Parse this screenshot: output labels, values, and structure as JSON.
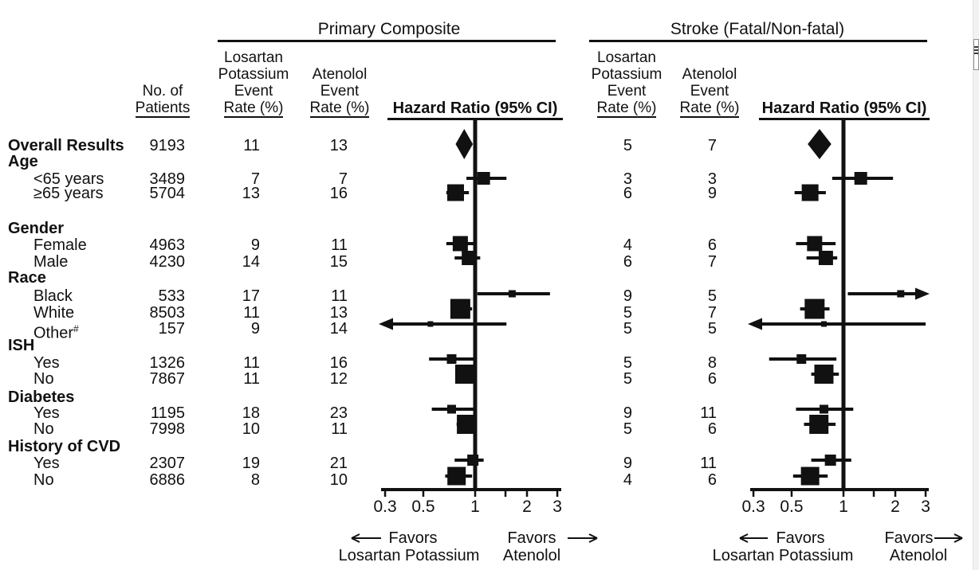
{
  "chart_data": {
    "type": "forest",
    "x_scale": "log",
    "x_ticks_labeled": [
      "0.3",
      "0.5",
      "1",
      "2",
      "3"
    ],
    "x_tick_values": [
      0.3,
      0.5,
      1,
      1.5,
      2,
      3
    ],
    "x_range": [
      0.29,
      3.15
    ],
    "columns": {
      "patients": [
        "No. of",
        "Patients"
      ],
      "losartan": [
        "Losartan",
        "Potassium",
        "Event",
        "Rate (%)"
      ],
      "atenolol": [
        "Atenolol",
        "Event",
        "Rate (%)"
      ],
      "hazard": "Hazard Ratio (95% CI)"
    },
    "panels": [
      {
        "key": "primary",
        "title": "Primary Composite",
        "favors_left": [
          "Favors",
          "Losartan Potassium"
        ],
        "favors_right": [
          "Favors",
          "Atenolol"
        ]
      },
      {
        "key": "stroke",
        "title": "Stroke (Fatal/Non-fatal)",
        "favors_left": [
          "Favors",
          "Losartan Potassium"
        ],
        "favors_right": [
          "Favors",
          "Atenolol"
        ]
      }
    ],
    "rows": [
      {
        "label": "Overall Results",
        "style": "overall",
        "n": 9193,
        "marker": "diamond",
        "size": 24,
        "primary": {
          "rate_losartan": 11,
          "rate_atenolol": 13,
          "hr": 0.86,
          "ci": [
            0.77,
            0.97
          ]
        },
        "stroke": {
          "rate_losartan": 5,
          "rate_atenolol": 7,
          "hr": 0.73,
          "ci": [
            0.62,
            0.85
          ]
        }
      },
      {
        "label": "Age",
        "style": "group"
      },
      {
        "label": "<65 years",
        "style": "item",
        "n": 3489,
        "marker": "square",
        "size": 16,
        "primary": {
          "rate_losartan": 7,
          "rate_atenolol": 7,
          "hr": 1.12,
          "ci": [
            0.89,
            1.52
          ]
        },
        "stroke": {
          "rate_losartan": 3,
          "rate_atenolol": 3,
          "hr": 1.26,
          "ci": [
            0.86,
            1.94
          ]
        }
      },
      {
        "label": "≥65 years",
        "style": "item",
        "n": 5704,
        "marker": "square",
        "size": 21,
        "primary": {
          "rate_losartan": 13,
          "rate_atenolol": 16,
          "hr": 0.77,
          "ci": [
            0.68,
            0.92
          ]
        },
        "stroke": {
          "rate_losartan": 6,
          "rate_atenolol": 9,
          "hr": 0.64,
          "ci": [
            0.52,
            0.79
          ]
        }
      },
      {
        "label": "Gender",
        "style": "group"
      },
      {
        "label": "Female",
        "style": "item",
        "n": 4963,
        "marker": "square",
        "size": 19,
        "primary": {
          "rate_losartan": 9,
          "rate_atenolol": 11,
          "hr": 0.82,
          "ci": [
            0.68,
            1.02
          ]
        },
        "stroke": {
          "rate_losartan": 4,
          "rate_atenolol": 6,
          "hr": 0.68,
          "ci": [
            0.53,
            0.9
          ]
        }
      },
      {
        "label": "Male",
        "style": "item",
        "n": 4230,
        "marker": "square",
        "size": 18,
        "primary": {
          "rate_losartan": 14,
          "rate_atenolol": 15,
          "hr": 0.92,
          "ci": [
            0.76,
            1.07
          ]
        },
        "stroke": {
          "rate_losartan": 6,
          "rate_atenolol": 7,
          "hr": 0.79,
          "ci": [
            0.61,
            0.92
          ]
        }
      },
      {
        "label": "Race",
        "style": "group"
      },
      {
        "label": "Black",
        "style": "item",
        "n": 533,
        "marker": "square",
        "size": 9,
        "primary": {
          "rate_losartan": 17,
          "rate_atenolol": 11,
          "hr": 1.64,
          "ci": [
            1.03,
            2.72
          ]
        },
        "stroke": {
          "rate_losartan": 9,
          "rate_atenolol": 5,
          "hr": 2.15,
          "ci": [
            1.06,
            3.1
          ],
          "hi_arrow": true
        }
      },
      {
        "label": "White",
        "style": "item",
        "n": 8503,
        "marker": "square",
        "size": 25,
        "primary": {
          "rate_losartan": 11,
          "rate_atenolol": 13,
          "hr": 0.82,
          "ci": [
            0.75,
            0.96
          ]
        },
        "stroke": {
          "rate_losartan": 5,
          "rate_atenolol": 7,
          "hr": 0.68,
          "ci": [
            0.56,
            0.83
          ]
        }
      },
      {
        "label": "Other",
        "sup": "#",
        "style": "item",
        "n": 157,
        "marker": "square",
        "size": 7,
        "primary": {
          "rate_losartan": 9,
          "rate_atenolol": 14,
          "hr": 0.55,
          "ci": [
            0.28,
            1.52
          ],
          "lo_arrow": true
        },
        "stroke": {
          "rate_losartan": 5,
          "rate_atenolol": 5,
          "hr": 0.77,
          "ci": [
            0.28,
            3.0
          ],
          "lo_arrow": true
        }
      },
      {
        "label": "ISH",
        "style": "group"
      },
      {
        "label": "Yes",
        "style": "item",
        "n": 1326,
        "marker": "square",
        "size": 12,
        "primary": {
          "rate_losartan": 11,
          "rate_atenolol": 16,
          "hr": 0.73,
          "ci": [
            0.54,
            1.02
          ]
        },
        "stroke": {
          "rate_losartan": 5,
          "rate_atenolol": 8,
          "hr": 0.57,
          "ci": [
            0.37,
            0.91
          ]
        }
      },
      {
        "label": "No",
        "style": "item",
        "n": 7867,
        "marker": "square",
        "size": 24,
        "primary": {
          "rate_losartan": 11,
          "rate_atenolol": 12,
          "hr": 0.87,
          "ci": [
            0.78,
            1.02
          ]
        },
        "stroke": {
          "rate_losartan": 5,
          "rate_atenolol": 6,
          "hr": 0.77,
          "ci": [
            0.65,
            0.94
          ]
        }
      },
      {
        "label": "Diabetes",
        "style": "group"
      },
      {
        "label": "Yes",
        "style": "item",
        "n": 1195,
        "marker": "square",
        "size": 11,
        "primary": {
          "rate_losartan": 18,
          "rate_atenolol": 23,
          "hr": 0.73,
          "ci": [
            0.56,
            0.99
          ]
        },
        "stroke": {
          "rate_losartan": 9,
          "rate_atenolol": 11,
          "hr": 0.77,
          "ci": [
            0.53,
            1.14
          ]
        }
      },
      {
        "label": "No",
        "style": "item",
        "n": 7998,
        "marker": "square",
        "size": 24,
        "primary": {
          "rate_losartan": 10,
          "rate_atenolol": 11,
          "hr": 0.89,
          "ci": [
            0.78,
            1.02
          ]
        },
        "stroke": {
          "rate_losartan": 5,
          "rate_atenolol": 6,
          "hr": 0.72,
          "ci": [
            0.59,
            0.9
          ]
        }
      },
      {
        "label": "History of CVD",
        "style": "group"
      },
      {
        "label": "Yes",
        "style": "item",
        "n": 2307,
        "marker": "square",
        "size": 14,
        "primary": {
          "rate_losartan": 19,
          "rate_atenolol": 21,
          "hr": 0.97,
          "ci": [
            0.76,
            1.12
          ]
        },
        "stroke": {
          "rate_losartan": 9,
          "rate_atenolol": 11,
          "hr": 0.84,
          "ci": [
            0.65,
            1.11
          ]
        }
      },
      {
        "label": "No",
        "style": "item",
        "n": 6886,
        "marker": "square",
        "size": 23,
        "primary": {
          "rate_losartan": 8,
          "rate_atenolol": 10,
          "hr": 0.78,
          "ci": [
            0.67,
            0.96
          ]
        },
        "stroke": {
          "rate_losartan": 4,
          "rate_atenolol": 6,
          "hr": 0.64,
          "ci": [
            0.51,
            0.81
          ]
        }
      }
    ],
    "colors": {
      "ink": "#111111",
      "background": "#ffffff"
    }
  },
  "icons": {
    "scrollbar_grip": "≡"
  }
}
